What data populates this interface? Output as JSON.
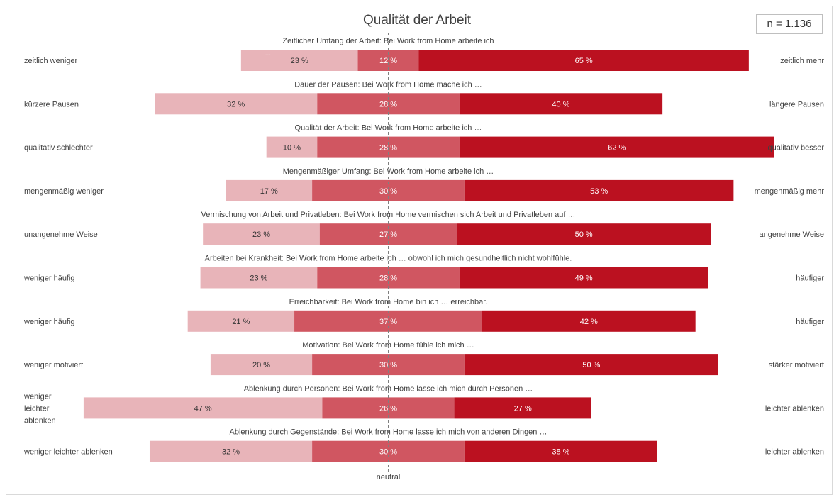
{
  "chart_data": {
    "type": "bar",
    "title": "Qualität der Arbeit",
    "sample_note": "n = 1.136",
    "neutral_label": "neutral",
    "neutral_line_index": 1,
    "colors": [
      "#e8b4b9",
      "#d05661",
      "#bb1120"
    ],
    "label_colors": [
      "#333333",
      "#ffffff",
      "#ffffff"
    ],
    "series_note": "three stacked segments per row: left answer, neutral, right answer (percent)",
    "rows": [
      {
        "question": "Zeitlicher Umfang der Arbeit: Bei Work from Home arbeite ich",
        "left": [
          "zeitlich weniger"
        ],
        "right": "zeitlich mehr",
        "values": [
          23,
          12,
          65
        ],
        "extra_mark": "..."
      },
      {
        "question": "Dauer der Pausen: Bei Work from Home mache ich …",
        "left": [
          "kürzere Pausen"
        ],
        "right": "längere Pausen",
        "values": [
          32,
          28,
          40
        ]
      },
      {
        "question": "Qualität der Arbeit: Bei Work from Home arbeite ich …",
        "left": [
          "qualitativ schlechter"
        ],
        "right": "qualitativ besser",
        "values": [
          10,
          28,
          62
        ]
      },
      {
        "question": "Mengenmäßiger Umfang: Bei Work from Home arbeite ich …",
        "left": [
          "mengenmäßig weniger"
        ],
        "right": "mengenmäßig mehr",
        "values": [
          17,
          30,
          53
        ]
      },
      {
        "question": "Vermischung von Arbeit und Privatleben: Bei Work from Home vermischen sich Arbeit und Privatleben auf …",
        "left": [
          "unangenehme Weise"
        ],
        "right": "angenehme Weise",
        "values": [
          23,
          27,
          50
        ]
      },
      {
        "question": "Arbeiten bei Krankheit: Bei Work from Home arbeite ich … obwohl ich mich gesundheitlich nicht wohlfühle.",
        "left": [
          "weniger häufig"
        ],
        "right": "häufiger",
        "values": [
          23,
          28,
          49
        ]
      },
      {
        "question": "Erreichbarkeit: Bei Work from Home bin ich … erreichbar.",
        "left": [
          "weniger häufig"
        ],
        "right": "häufiger",
        "values": [
          21,
          37,
          42
        ]
      },
      {
        "question": "Motivation: Bei Work from Home fühle ich mich …",
        "left": [
          "weniger motiviert"
        ],
        "right": "stärker motiviert",
        "values": [
          20,
          30,
          50
        ]
      },
      {
        "question": "Ablenkung durch Personen: Bei Work from Home lasse ich mich durch Personen …",
        "left": [
          "weniger",
          "leichter",
          "ablenken"
        ],
        "right": "leichter ablenken",
        "values": [
          47,
          26,
          27
        ]
      },
      {
        "question": "Ablenkung durch Gegenstände: Bei Work from Home lasse ich mich von anderen Dingen …",
        "left": [
          "weniger leichter ablenken"
        ],
        "right": "leichter ablenken",
        "values": [
          32,
          30,
          38
        ]
      }
    ]
  }
}
